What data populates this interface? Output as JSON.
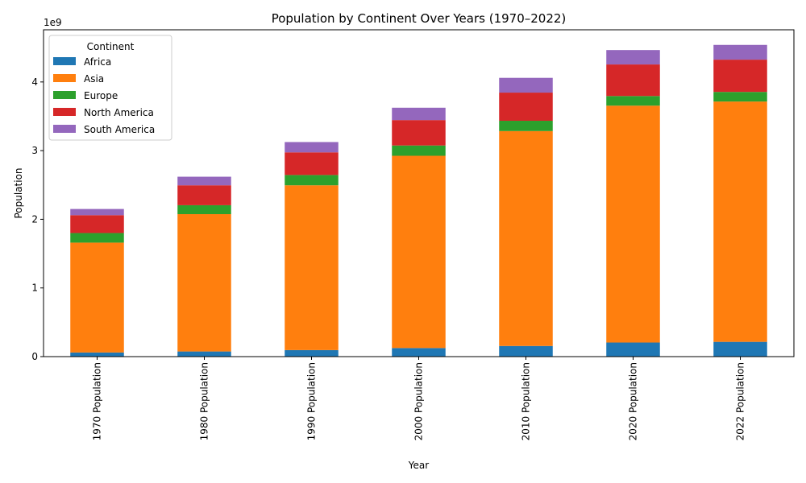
{
  "chart_data": {
    "type": "bar",
    "stacked": true,
    "title": "Population by Continent Over Years (1970–2022)",
    "xlabel": "Year",
    "ylabel": "Population",
    "y_multiplier_label": "1e9",
    "ylim": [
      0,
      4760000000
    ],
    "yticks": [
      0,
      1000000000,
      2000000000,
      3000000000,
      4000000000
    ],
    "ytick_labels": [
      "0",
      "1",
      "2",
      "3",
      "4"
    ],
    "grid": false,
    "legend": {
      "title": "Continent",
      "placement": "upper-left"
    },
    "categories": [
      "1970 Population",
      "1980 Population",
      "1990 Population",
      "2000 Population",
      "2010 Population",
      "2020 Population",
      "2022 Population"
    ],
    "series": [
      {
        "name": "Africa",
        "color": "#1f77b4",
        "values": [
          60000000,
          75000000,
          95000000,
          125000000,
          155000000,
          205000000,
          215000000
        ]
      },
      {
        "name": "Asia",
        "color": "#ff7f0e",
        "values": [
          1600000000,
          2000000000,
          2400000000,
          2800000000,
          3130000000,
          3450000000,
          3500000000
        ]
      },
      {
        "name": "Europe",
        "color": "#2ca02c",
        "values": [
          140000000,
          130000000,
          150000000,
          150000000,
          150000000,
          140000000,
          140000000
        ]
      },
      {
        "name": "North America",
        "color": "#d62728",
        "values": [
          260000000,
          290000000,
          330000000,
          370000000,
          410000000,
          460000000,
          470000000
        ]
      },
      {
        "name": "South America",
        "color": "#9467bd",
        "values": [
          90000000,
          125000000,
          150000000,
          180000000,
          215000000,
          210000000,
          215000000
        ]
      }
    ]
  }
}
